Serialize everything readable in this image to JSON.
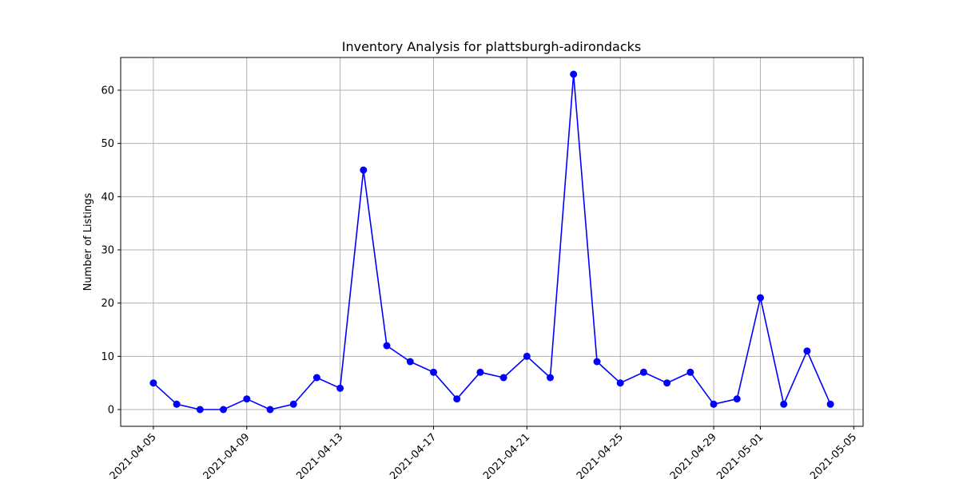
{
  "chart_data": {
    "type": "line",
    "title": "Inventory Analysis for plattsburgh-adirondacks",
    "xlabel": "",
    "ylabel": "Number of Listings",
    "x": [
      "2021-04-05",
      "2021-04-06",
      "2021-04-07",
      "2021-04-08",
      "2021-04-09",
      "2021-04-10",
      "2021-04-11",
      "2021-04-12",
      "2021-04-13",
      "2021-04-14",
      "2021-04-15",
      "2021-04-16",
      "2021-04-17",
      "2021-04-18",
      "2021-04-19",
      "2021-04-20",
      "2021-04-21",
      "2021-04-22",
      "2021-04-23",
      "2021-04-24",
      "2021-04-25",
      "2021-04-26",
      "2021-04-27",
      "2021-04-28",
      "2021-04-29",
      "2021-04-30",
      "2021-05-01",
      "2021-05-02",
      "2021-05-03",
      "2021-05-04"
    ],
    "y": [
      5,
      1,
      0,
      0,
      2,
      0,
      1,
      6,
      4,
      45,
      12,
      9,
      7,
      2,
      7,
      6,
      10,
      6,
      63,
      9,
      5,
      7,
      5,
      7,
      1,
      2,
      21,
      1,
      11,
      1
    ],
    "xlim": [
      "2021-04-03.6",
      "2021-05-05.4"
    ],
    "ylim": [
      -3.15,
      66.15
    ],
    "x_ticks": [
      "2021-04-05",
      "2021-04-09",
      "2021-04-13",
      "2021-04-17",
      "2021-04-21",
      "2021-04-25",
      "2021-04-29",
      "2021-05-01",
      "2021-05-05"
    ],
    "y_ticks": [
      0,
      10,
      20,
      30,
      40,
      50,
      60
    ],
    "line_color": "#0000ff",
    "grid": true,
    "marker": "circle"
  }
}
